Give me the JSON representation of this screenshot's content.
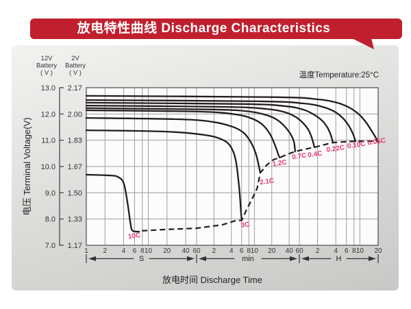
{
  "header": {
    "title": "放电特性曲线 Discharge Characteristics",
    "accent_color": "#c0202e"
  },
  "chart_data": {
    "type": "line",
    "title": "放电特性曲线 Discharge Characteristics",
    "temperature_note": "温度Temperature:25°C",
    "xlabel": "放电时间 Discharge Time",
    "ylabel": "电压 Terminal Voltage(V)",
    "grid": true,
    "curve_color": "#241c1c",
    "label_color": "#e8386d",
    "x_axis": {
      "scale": "log-piecewise",
      "unit_sections": [
        {
          "label": "S",
          "t_start": 1,
          "t_end": 60,
          "ticks": [
            [
              1,
              "1"
            ],
            [
              2,
              "2"
            ],
            [
              4,
              "4"
            ],
            [
              6,
              "6"
            ],
            [
              8,
              "8"
            ],
            [
              10,
              "10"
            ],
            [
              20,
              "20"
            ],
            [
              40,
              "40"
            ],
            [
              60,
              "60"
            ]
          ]
        },
        {
          "label": "min",
          "t_start": 60,
          "t_end": 3600,
          "ticks": [
            [
              120,
              "2"
            ],
            [
              240,
              "4"
            ],
            [
              360,
              "6"
            ],
            [
              480,
              "8"
            ],
            [
              600,
              "10"
            ],
            [
              1200,
              "20"
            ],
            [
              2400,
              "40"
            ],
            [
              3600,
              "60"
            ]
          ]
        },
        {
          "label": "H",
          "t_start": 3600,
          "t_end": 72000,
          "ticks": [
            [
              7200,
              "2"
            ],
            [
              14400,
              "4"
            ],
            [
              21600,
              "6"
            ],
            [
              28800,
              "8"
            ],
            [
              36000,
              "10"
            ],
            [
              72000,
              "20"
            ]
          ]
        }
      ]
    },
    "y_axis": {
      "v_max": 13.0,
      "v_min": 7.0,
      "column_headers": [
        "12V\nBattery\n( V )",
        "2V\nBattery\n( V )"
      ],
      "v12_labels": [
        "13.0",
        "12.0",
        "11.0",
        "10.0",
        "9.0",
        "8.0",
        "7.0"
      ],
      "v2_labels": [
        "2.17",
        "2.00",
        "1.83",
        "1.67",
        "1.50",
        "1.33",
        "1.17"
      ]
    },
    "series": [
      {
        "name": "10C",
        "points": [
          [
            1,
            9.69
          ],
          [
            2.3,
            9.66
          ],
          [
            3.2,
            9.61
          ],
          [
            4,
            9.37
          ],
          [
            4.6,
            8.64
          ],
          [
            5.2,
            7.78
          ],
          [
            5.6,
            7.55
          ],
          [
            7.1,
            7.52
          ]
        ]
      },
      {
        "name": "3C",
        "points": [
          [
            1,
            11.38
          ],
          [
            18,
            11.33
          ],
          [
            83,
            11.2
          ],
          [
            168,
            11.02
          ],
          [
            233,
            10.76
          ],
          [
            284,
            10.26
          ],
          [
            326,
            9.24
          ],
          [
            353,
            8.25
          ],
          [
            363,
            7.95
          ]
        ]
      },
      {
        "name": "2.1C",
        "points": [
          [
            1,
            11.85
          ],
          [
            30,
            11.8
          ],
          [
            112,
            11.7
          ],
          [
            253,
            11.51
          ],
          [
            391,
            11.28
          ],
          [
            516,
            10.94
          ],
          [
            640,
            10.47
          ],
          [
            760,
            9.76
          ]
        ]
      },
      {
        "name": "1.2C",
        "points": [
          [
            1,
            12.14
          ],
          [
            65,
            12.09
          ],
          [
            290,
            11.98
          ],
          [
            580,
            11.8
          ],
          [
            850,
            11.57
          ],
          [
            1120,
            11.23
          ],
          [
            1365,
            10.81
          ],
          [
            1565,
            10.44
          ],
          [
            1650,
            10.34
          ]
        ]
      },
      {
        "name": "0.7C",
        "points": [
          [
            1,
            12.22
          ],
          [
            112,
            12.17
          ],
          [
            505,
            12.09
          ],
          [
            1055,
            11.93
          ],
          [
            1550,
            11.75
          ],
          [
            2035,
            11.51
          ],
          [
            2540,
            11.23
          ],
          [
            2905,
            10.94
          ],
          [
            3050,
            10.57
          ]
        ]
      },
      {
        "name": "0.4C",
        "points": [
          [
            1,
            12.32
          ],
          [
            195,
            12.27
          ],
          [
            995,
            12.19
          ],
          [
            2070,
            12.06
          ],
          [
            3130,
            11.88
          ],
          [
            4200,
            11.64
          ],
          [
            5180,
            11.36
          ],
          [
            5880,
            11.04
          ],
          [
            6380,
            10.73
          ]
        ]
      },
      {
        "name": "0.22C",
        "points": [
          [
            1,
            12.43
          ],
          [
            380,
            12.38
          ],
          [
            1985,
            12.3
          ],
          [
            4130,
            12.17
          ],
          [
            6240,
            11.98
          ],
          [
            8520,
            11.75
          ],
          [
            10440,
            11.49
          ],
          [
            11900,
            11.2
          ],
          [
            12900,
            10.91
          ]
        ]
      },
      {
        "name": "0.10C",
        "points": [
          [
            1,
            12.53
          ],
          [
            760,
            12.48
          ],
          [
            4230,
            12.4
          ],
          [
            8760,
            12.27
          ],
          [
            13700,
            12.09
          ],
          [
            18700,
            11.85
          ],
          [
            23500,
            11.56
          ],
          [
            27600,
            11.25
          ],
          [
            30500,
            10.96
          ]
        ]
      },
      {
        "name": "0.05C",
        "points": [
          [
            1,
            12.69
          ],
          [
            1380,
            12.64
          ],
          [
            7050,
            12.56
          ],
          [
            15100,
            12.43
          ],
          [
            24100,
            12.24
          ],
          [
            33800,
            12.01
          ],
          [
            44200,
            11.72
          ],
          [
            54400,
            11.41
          ],
          [
            65100,
            11.12
          ],
          [
            72000,
            10.94
          ]
        ]
      }
    ],
    "series_labels": [
      {
        "text": "10C",
        "t": 6,
        "v": 7.28
      },
      {
        "text": "3C",
        "t": 420,
        "v": 7.7
      },
      {
        "text": "2.1C",
        "t": 1000,
        "v": 9.35
      },
      {
        "text": "1.2C",
        "t": 1660,
        "v": 10.05
      },
      {
        "text": "0.7C",
        "t": 3620,
        "v": 10.31
      },
      {
        "text": "0.4C",
        "t": 6600,
        "v": 10.39
      },
      {
        "text": "0.22C",
        "t": 14400,
        "v": 10.6
      },
      {
        "text": "0.10C",
        "t": 31800,
        "v": 10.74
      },
      {
        "text": "0.05C",
        "t": 68500,
        "v": 10.87
      }
    ],
    "cutoff_line": {
      "dashed": true,
      "points": [
        [
          7.9,
          7.55
        ],
        [
          18,
          7.6
        ],
        [
          60,
          7.65
        ],
        [
          168,
          7.78
        ],
        [
          284,
          7.94
        ],
        [
          363,
          7.95
        ],
        [
          440,
          8.36
        ],
        [
          550,
          8.77
        ],
        [
          670,
          9.17
        ],
        [
          760,
          9.76
        ],
        [
          975,
          10.05
        ],
        [
          1285,
          10.26
        ],
        [
          1650,
          10.34
        ],
        [
          2270,
          10.47
        ],
        [
          3050,
          10.57
        ],
        [
          4300,
          10.65
        ],
        [
          6380,
          10.73
        ],
        [
          8710,
          10.81
        ],
        [
          12900,
          10.91
        ],
        [
          19700,
          10.94
        ],
        [
          30500,
          10.96
        ],
        [
          47300,
          10.96
        ],
        [
          72000,
          10.96
        ]
      ]
    }
  }
}
